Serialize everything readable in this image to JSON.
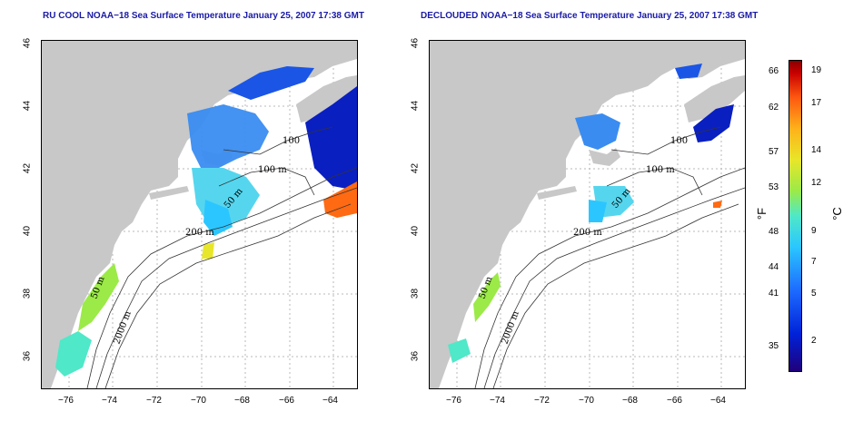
{
  "panels": [
    {
      "title": "RU COOL NOAA−18 Sea Surface Temperature January 25, 2007 17:38 GMT",
      "contours": {
        "c100": "100 m",
        "c50": "50 m",
        "c200": "200 m",
        "c2000": "2000 m",
        "c50b": "50 m",
        "c100b": "100"
      }
    },
    {
      "title": "DECLOUDED NOAA−18 Sea Surface Temperature January 25, 2007 17:38 GMT",
      "contours": {
        "c100": "100 m",
        "c50": "50 m",
        "c200": "200 m",
        "c2000": "2000 m",
        "c50b": "50 m",
        "c100b": "100"
      }
    }
  ],
  "axes": {
    "x_ticks": [
      "−76",
      "−74",
      "−72",
      "−70",
      "−68",
      "−66",
      "−64"
    ],
    "y_ticks": [
      "46",
      "44",
      "42",
      "40",
      "38",
      "36"
    ]
  },
  "colorbar": {
    "fahrenheit_ticks": [
      "66",
      "62",
      "57",
      "53",
      "48",
      "44",
      "41",
      "35"
    ],
    "celsius_ticks": [
      "19",
      "17",
      "14",
      "12",
      "9",
      "7",
      "5",
      "2"
    ],
    "fahrenheit_unit": "°F",
    "celsius_unit": "°C"
  },
  "colors": {
    "land": "#c8c8c8",
    "title": "#1a1aa6",
    "grid": "#b8b8b8"
  }
}
